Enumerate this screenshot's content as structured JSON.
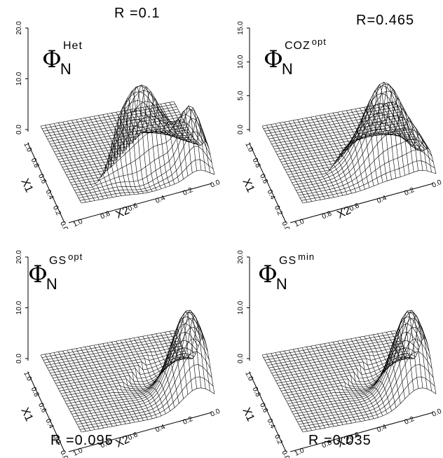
{
  "panels": [
    {
      "r_label": "R =0.1",
      "function": {
        "symbol": "Φ",
        "sub": "N",
        "sup": "Het",
        "sup2": ""
      },
      "z_ticks": [
        "20.0",
        "10.0",
        "0.0"
      ],
      "surface": "het"
    },
    {
      "r_label": "R=0.465",
      "function": {
        "symbol": "Φ",
        "sub": "N",
        "sup": "COZ",
        "sup2": "opt"
      },
      "z_ticks": [
        "15.0",
        "10.0",
        "5.0",
        "0.0"
      ],
      "surface": "coz"
    },
    {
      "r_label": "R =0.095",
      "function": {
        "symbol": "Φ",
        "sub": "N",
        "sup": "GS",
        "sup2": "opt"
      },
      "z_ticks": [
        "20.0",
        "10.0",
        "0.0"
      ],
      "surface": "gs"
    },
    {
      "r_label": "R =0.035",
      "function": {
        "symbol": "Φ",
        "sub": "N",
        "sup": "GS",
        "sup2": "min"
      },
      "z_ticks": [
        "20.0",
        "10.0",
        "0.0"
      ],
      "surface": "gs"
    }
  ],
  "axes": {
    "x1_label": "X1",
    "x2_label": "X2",
    "x1_ticks": [
      "1.0",
      "0.8",
      "0.6",
      "0.4",
      "0.2",
      "0.0"
    ],
    "x2_ticks": [
      "1.0",
      "0.8",
      "0.6",
      "0.4",
      "0.2",
      "0.0"
    ]
  }
}
